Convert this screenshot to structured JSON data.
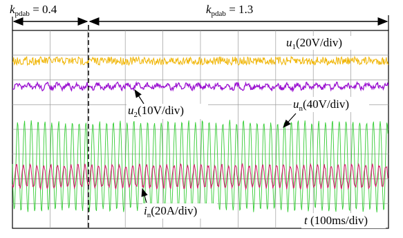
{
  "annotations": {
    "k_left": {
      "symbol": "k",
      "subscript": "pdab",
      "text": " = 0.4"
    },
    "k_right": {
      "symbol": "k",
      "subscript": "pdab",
      "text": " = 1.3"
    },
    "u1": {
      "symbol": "u",
      "subscript": "1",
      "text": "(20V/div)"
    },
    "u2": {
      "symbol": "u",
      "subscript": "2",
      "text": "(10V/div)"
    },
    "un": {
      "symbol": "u",
      "subscript": "n",
      "text": "(40V/div)"
    },
    "in": {
      "symbol": "i",
      "subscript": "n",
      "text": "(20A/div)"
    },
    "time": {
      "symbol": "t",
      "text": " (100ms/div)"
    }
  }
}
